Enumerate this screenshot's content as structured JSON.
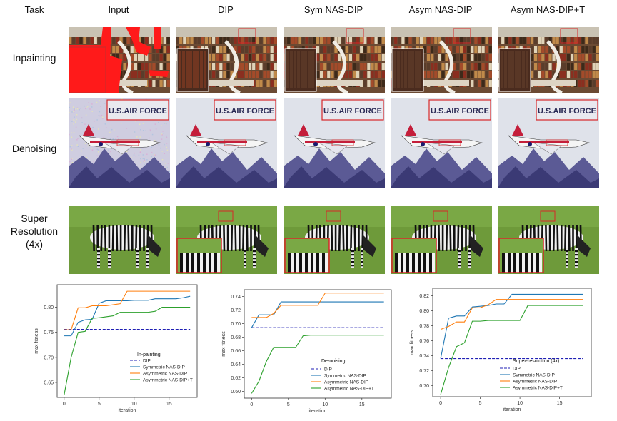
{
  "header": {
    "task": "Task",
    "columns": [
      "Input",
      "DIP",
      "Sym NAS-DIP",
      "Asym NAS-DIP",
      "Asym NAS-DIP+T"
    ]
  },
  "rows": [
    {
      "label": "Inpainting",
      "kind": "library"
    },
    {
      "label": "Denoising",
      "kind": "jet"
    },
    {
      "label_lines": [
        "Super",
        "Resolution",
        "(4x)"
      ],
      "kind": "zebra"
    }
  ],
  "zoom_text": "U.S.AIR FORCE",
  "colors": {
    "dip": "#1f1fb4",
    "sym": "#1f77b4",
    "asym": "#ff7f0e",
    "asymT": "#2ca02c",
    "mask": "#ff1a1a",
    "inset": "#d62728"
  },
  "chart_data": [
    {
      "type": "line",
      "title": "In-painting",
      "xlabel": "iteration",
      "ylabel": "max fitness",
      "xlim": [
        -1,
        19
      ],
      "ylim": [
        0.62,
        0.845
      ],
      "xticks": [
        0,
        5,
        10,
        15
      ],
      "yticks": [
        0.65,
        0.7,
        0.75,
        0.8
      ],
      "ytick_labels": [
        "0.65",
        "0.70",
        "0.75",
        "0.80"
      ],
      "legend": [
        "DIP",
        "Symmetric NAS-DIP",
        "Asymmetric NAS-DIP",
        "Asymmetric NAS-DIP+T"
      ],
      "series": [
        {
          "name": "DIP",
          "style": "dashed",
          "color": "#1f1fb4",
          "x": [
            0,
            18
          ],
          "y": [
            0.756,
            0.756
          ]
        },
        {
          "name": "Symmetric NAS-DIP",
          "color": "#1f77b4",
          "x": [
            0,
            1,
            2,
            3,
            4,
            5,
            6,
            7,
            8,
            9,
            10,
            11,
            12,
            13,
            14,
            15,
            16,
            17,
            18
          ],
          "y": [
            0.743,
            0.743,
            0.77,
            0.775,
            0.776,
            0.808,
            0.813,
            0.813,
            0.813,
            0.813,
            0.814,
            0.814,
            0.814,
            0.817,
            0.817,
            0.817,
            0.817,
            0.819,
            0.822
          ]
        },
        {
          "name": "Asymmetric NAS-DIP",
          "color": "#ff7f0e",
          "x": [
            0,
            1,
            2,
            3,
            4,
            5,
            6,
            7,
            8,
            9,
            10,
            11,
            12,
            13,
            14,
            15,
            16,
            17,
            18
          ],
          "y": [
            0.755,
            0.755,
            0.799,
            0.799,
            0.803,
            0.803,
            0.803,
            0.805,
            0.807,
            0.832,
            0.832,
            0.832,
            0.832,
            0.832,
            0.832,
            0.832,
            0.832,
            0.832,
            0.832
          ]
        },
        {
          "name": "Asymmetric NAS-DIP+T",
          "color": "#2ca02c",
          "x": [
            0,
            1,
            2,
            3,
            4,
            5,
            6,
            7,
            8,
            9,
            10,
            11,
            12,
            13,
            14,
            15,
            16,
            17,
            18
          ],
          "y": [
            0.625,
            0.7,
            0.75,
            0.752,
            0.778,
            0.779,
            0.781,
            0.783,
            0.79,
            0.79,
            0.79,
            0.79,
            0.79,
            0.792,
            0.8,
            0.8,
            0.8,
            0.8,
            0.8
          ]
        }
      ]
    },
    {
      "type": "line",
      "title": "De-noising",
      "xlabel": "iteration",
      "ylabel": "max fitness",
      "xlim": [
        -1,
        19
      ],
      "ylim": [
        0.59,
        0.75
      ],
      "xticks": [
        0,
        5,
        10,
        15
      ],
      "yticks": [
        0.6,
        0.62,
        0.64,
        0.66,
        0.68,
        0.7,
        0.72,
        0.74
      ],
      "ytick_labels": [
        "0.60",
        "0.62",
        "0.64",
        "0.66",
        "0.68",
        "0.70",
        "0.72",
        "0.74"
      ],
      "legend": [
        "DIP",
        "Symmetric NAS-DIP",
        "Asymmetric NAS-DIP",
        "Asymmetric NAS-DIP+T"
      ],
      "series": [
        {
          "name": "DIP",
          "style": "dashed",
          "color": "#1f1fb4",
          "x": [
            0,
            18
          ],
          "y": [
            0.694,
            0.694
          ]
        },
        {
          "name": "Symmetric NAS-DIP",
          "color": "#1f77b4",
          "x": [
            0,
            1,
            2,
            3,
            4,
            5,
            6,
            7,
            8,
            9,
            10,
            11,
            12,
            13,
            14,
            15,
            16,
            17,
            18
          ],
          "y": [
            0.694,
            0.713,
            0.713,
            0.713,
            0.732,
            0.732,
            0.732,
            0.732,
            0.732,
            0.732,
            0.732,
            0.732,
            0.732,
            0.732,
            0.732,
            0.732,
            0.732,
            0.732,
            0.732
          ]
        },
        {
          "name": "Asymmetric NAS-DIP",
          "color": "#ff7f0e",
          "x": [
            0,
            1,
            2,
            3,
            4,
            5,
            6,
            7,
            8,
            9,
            10,
            11,
            12,
            13,
            14,
            15,
            16,
            17,
            18
          ],
          "y": [
            0.709,
            0.709,
            0.709,
            0.715,
            0.727,
            0.727,
            0.727,
            0.727,
            0.727,
            0.727,
            0.745,
            0.745,
            0.745,
            0.745,
            0.745,
            0.745,
            0.745,
            0.745,
            0.745
          ]
        },
        {
          "name": "Asymmetric NAS-DIP+T",
          "color": "#2ca02c",
          "x": [
            0,
            1,
            2,
            3,
            4,
            5,
            6,
            7,
            8,
            9,
            10,
            11,
            12,
            13,
            14,
            15,
            16,
            17,
            18
          ],
          "y": [
            0.597,
            0.615,
            0.644,
            0.665,
            0.665,
            0.665,
            0.665,
            0.682,
            0.683,
            0.683,
            0.683,
            0.683,
            0.683,
            0.683,
            0.683,
            0.683,
            0.683,
            0.683,
            0.683
          ]
        }
      ]
    },
    {
      "type": "line",
      "title": "Super-resolution (4x)",
      "xlabel": "iteration",
      "ylabel": "max fitness",
      "xlim": [
        -1,
        19
      ],
      "ylim": [
        0.685,
        0.83
      ],
      "xticks": [
        0,
        5,
        10,
        15
      ],
      "yticks": [
        0.7,
        0.72,
        0.74,
        0.76,
        0.78,
        0.8,
        0.82
      ],
      "ytick_labels": [
        "0.70",
        "0.72",
        "0.74",
        "0.76",
        "0.78",
        "0.80",
        "0.82"
      ],
      "legend": [
        "DIP",
        "Symmetric NAS-DIP",
        "Asymmetric NAS-DIP",
        "Asymmetric NAS-DIP+T"
      ],
      "series": [
        {
          "name": "DIP",
          "style": "dashed",
          "color": "#1f1fb4",
          "x": [
            0,
            18
          ],
          "y": [
            0.736,
            0.736
          ]
        },
        {
          "name": "Symmetric NAS-DIP",
          "color": "#1f77b4",
          "x": [
            0,
            1,
            2,
            3,
            4,
            5,
            6,
            7,
            8,
            9,
            10,
            11,
            12,
            13,
            14,
            15,
            16,
            17,
            18
          ],
          "y": [
            0.736,
            0.79,
            0.793,
            0.793,
            0.805,
            0.806,
            0.807,
            0.809,
            0.809,
            0.822,
            0.822,
            0.822,
            0.822,
            0.822,
            0.822,
            0.822,
            0.822,
            0.822,
            0.822
          ]
        },
        {
          "name": "Asymmetric NAS-DIP",
          "color": "#ff7f0e",
          "x": [
            0,
            1,
            2,
            3,
            4,
            5,
            6,
            7,
            8,
            9,
            10,
            11,
            12,
            13,
            14,
            15,
            16,
            17,
            18
          ],
          "y": [
            0.775,
            0.779,
            0.785,
            0.785,
            0.804,
            0.804,
            0.808,
            0.815,
            0.815,
            0.815,
            0.815,
            0.815,
            0.815,
            0.815,
            0.815,
            0.815,
            0.815,
            0.815,
            0.815
          ]
        },
        {
          "name": "Asymmetric NAS-DIP+T",
          "color": "#2ca02c",
          "x": [
            0,
            1,
            2,
            3,
            4,
            5,
            6,
            7,
            8,
            9,
            10,
            11,
            12,
            13,
            14,
            15,
            16,
            17,
            18
          ],
          "y": [
            0.688,
            0.724,
            0.752,
            0.757,
            0.786,
            0.786,
            0.787,
            0.787,
            0.787,
            0.787,
            0.787,
            0.807,
            0.807,
            0.807,
            0.807,
            0.807,
            0.807,
            0.807,
            0.807
          ]
        }
      ]
    }
  ]
}
